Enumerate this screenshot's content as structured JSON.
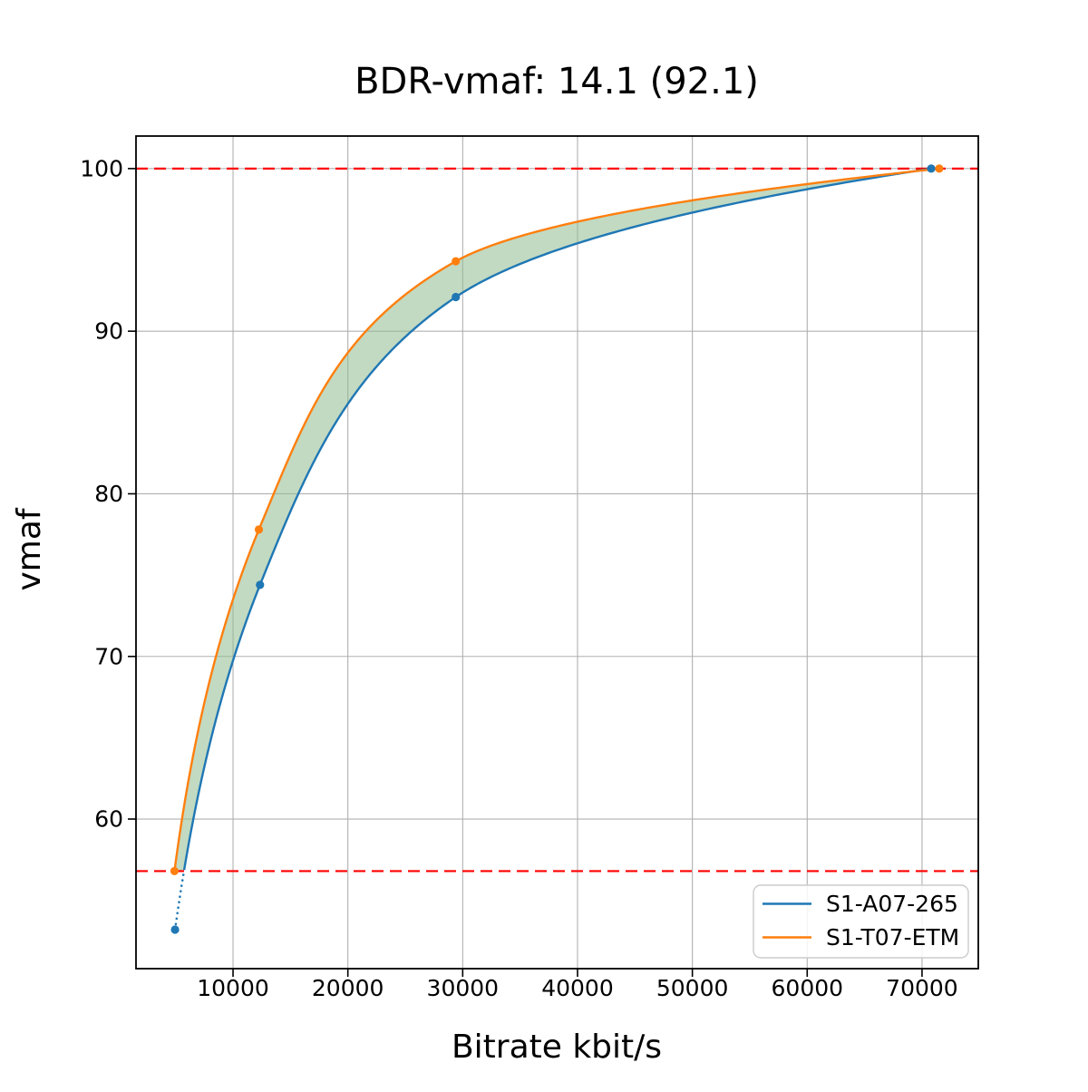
{
  "chart_data": {
    "type": "line",
    "title": "BDR-vmaf: 14.1 (92.1)",
    "xlabel": "Bitrate kbit/s",
    "ylabel": "vmaf",
    "xlim": [
      1550,
      74900
    ],
    "ylim": [
      50.8,
      102.0
    ],
    "x_ticks": [
      10000,
      20000,
      30000,
      40000,
      50000,
      60000,
      70000
    ],
    "y_ticks": [
      60,
      70,
      80,
      90,
      100
    ],
    "grid": true,
    "grid_color": "#b0b0b0",
    "legend_position": "lower right",
    "series": [
      {
        "name": "S1-A07-265",
        "color": "#1f77b4",
        "points": [
          [
            4950,
            53.2
          ],
          [
            12350,
            74.4
          ],
          [
            29400,
            92.1
          ],
          [
            70800,
            100.0
          ]
        ],
        "dotted_below_vmaf": 56.8
      },
      {
        "name": "S1-T07-ETM",
        "color": "#ff7f0e",
        "points": [
          [
            4900,
            56.8
          ],
          [
            12250,
            77.8
          ],
          [
            29400,
            94.3
          ],
          [
            71500,
            100.0
          ]
        ]
      }
    ],
    "reference_lines": {
      "color": "#ff0000",
      "style": "dashed",
      "y_values": [
        100.0,
        56.8
      ]
    },
    "fill_between": {
      "color": "#8fbc8f",
      "opacity": 0.55
    }
  }
}
